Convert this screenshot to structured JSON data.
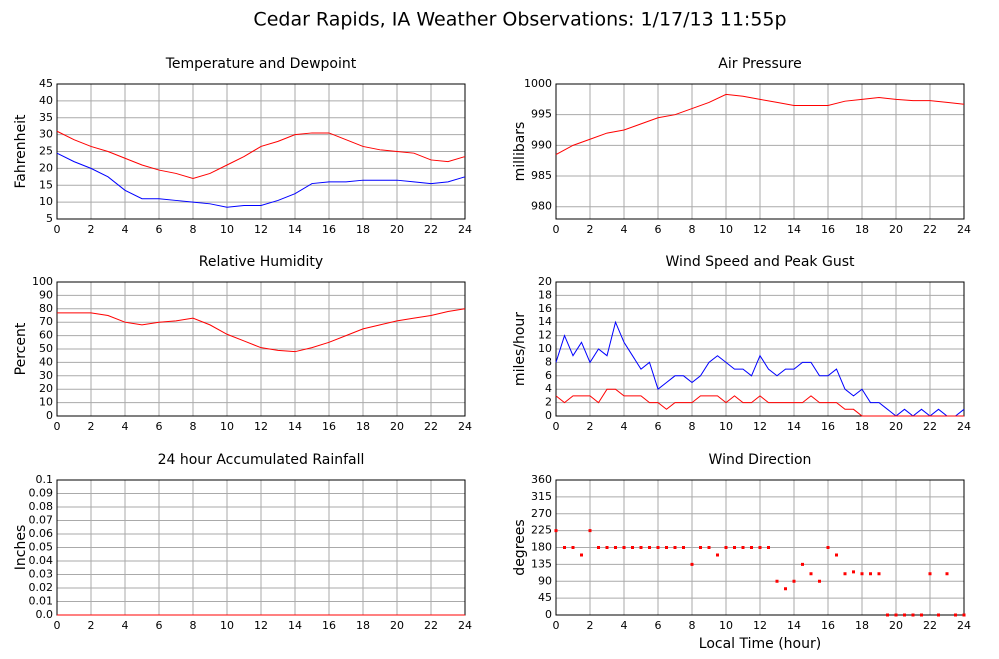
{
  "title": "Cedar Rapids, IA Weather Observations: 1/17/13 11:55p",
  "chart_data": [
    {
      "type": "line",
      "title": "Temperature and Dewpoint",
      "y_label": "Fahrenheit",
      "x": [
        0,
        1,
        2,
        3,
        4,
        5,
        6,
        7,
        8,
        9,
        10,
        11,
        12,
        13,
        14,
        15,
        16,
        17,
        18,
        19,
        20,
        21,
        22,
        23,
        24
      ],
      "series": [
        {
          "color": "#ff0000",
          "values": [
            31,
            28.5,
            26.5,
            25,
            23,
            21,
            19.5,
            18.5,
            17,
            18.5,
            21,
            23.5,
            26.5,
            28,
            30,
            30.5,
            30.5,
            28.5,
            26.5,
            25.5,
            25,
            24.5,
            22.5,
            22,
            23.5
          ]
        },
        {
          "color": "#0000ff",
          "values": [
            24.5,
            22,
            20,
            17.5,
            13.5,
            11,
            11,
            10.5,
            10,
            9.5,
            8.5,
            9,
            9,
            10.5,
            12.5,
            15.5,
            16,
            16,
            16.5,
            16.5,
            16.5,
            16,
            15.5,
            16,
            17.5
          ]
        }
      ],
      "xlim": [
        0,
        24
      ],
      "xticks": [
        0,
        2,
        4,
        6,
        8,
        10,
        12,
        14,
        16,
        18,
        20,
        22,
        24
      ],
      "ylim": [
        5,
        45
      ],
      "yticks": [
        5,
        10,
        15,
        20,
        25,
        30,
        35,
        40,
        45
      ],
      "grid": true
    },
    {
      "type": "line",
      "title": "Air Pressure",
      "y_label": "millibars",
      "x": [
        0,
        1,
        2,
        3,
        4,
        5,
        6,
        7,
        8,
        9,
        10,
        11,
        12,
        13,
        14,
        15,
        16,
        17,
        18,
        19,
        20,
        21,
        22,
        23,
        24
      ],
      "series": [
        {
          "color": "#ff0000",
          "values": [
            988.5,
            990,
            991,
            992,
            992.5,
            993.5,
            994.5,
            995,
            996,
            997,
            998.3,
            998,
            997.5,
            997,
            996.5,
            996.5,
            996.5,
            997.2,
            997.5,
            997.8,
            997.5,
            997.3,
            997.3,
            997,
            996.7
          ]
        }
      ],
      "xlim": [
        0,
        24
      ],
      "xticks": [
        0,
        2,
        4,
        6,
        8,
        10,
        12,
        14,
        16,
        18,
        20,
        22,
        24
      ],
      "ylim": [
        978,
        1000
      ],
      "yticks": [
        980,
        985,
        990,
        995,
        1000
      ],
      "grid": true
    },
    {
      "type": "line",
      "title": "Relative Humidity",
      "y_label": "Percent",
      "x": [
        0,
        1,
        2,
        3,
        4,
        5,
        6,
        7,
        8,
        9,
        10,
        11,
        12,
        13,
        14,
        15,
        16,
        17,
        18,
        19,
        20,
        21,
        22,
        23,
        24
      ],
      "series": [
        {
          "color": "#ff0000",
          "values": [
            77,
            77,
            77,
            75,
            70,
            68,
            70,
            71,
            73,
            68,
            61,
            56,
            51,
            49,
            48,
            51,
            55,
            60,
            65,
            68,
            71,
            73,
            75,
            78,
            80
          ]
        }
      ],
      "xlim": [
        0,
        24
      ],
      "xticks": [
        0,
        2,
        4,
        6,
        8,
        10,
        12,
        14,
        16,
        18,
        20,
        22,
        24
      ],
      "ylim": [
        0,
        100
      ],
      "yticks": [
        0,
        10,
        20,
        30,
        40,
        50,
        60,
        70,
        80,
        90,
        100
      ],
      "grid": true
    },
    {
      "type": "line",
      "title": "Wind Speed and Peak Gust",
      "y_label": "miles/hour",
      "x": [
        0,
        0.5,
        1,
        1.5,
        2,
        2.5,
        3,
        3.5,
        4,
        4.5,
        5,
        5.5,
        6,
        6.5,
        7,
        7.5,
        8,
        8.5,
        9,
        9.5,
        10,
        10.5,
        11,
        11.5,
        12,
        12.5,
        13,
        13.5,
        14,
        14.5,
        15,
        15.5,
        16,
        16.5,
        17,
        17.5,
        18,
        18.5,
        19,
        19.5,
        20,
        20.5,
        21,
        21.5,
        22,
        22.5,
        23,
        23.5,
        24
      ],
      "series": [
        {
          "color": "#0000ff",
          "values": [
            8,
            12,
            9,
            11,
            8,
            10,
            9,
            14,
            11,
            9,
            7,
            8,
            4,
            5,
            6,
            6,
            5,
            6,
            8,
            9,
            8,
            7,
            7,
            6,
            9,
            7,
            6,
            7,
            7,
            8,
            8,
            6,
            6,
            7,
            4,
            3,
            4,
            2,
            2,
            1,
            0,
            1,
            0,
            1,
            0,
            1,
            0,
            0,
            1
          ]
        },
        {
          "color": "#ff0000",
          "values": [
            3,
            2,
            3,
            3,
            3,
            2,
            4,
            4,
            3,
            3,
            3,
            2,
            2,
            1,
            2,
            2,
            2,
            3,
            3,
            3,
            2,
            3,
            2,
            2,
            3,
            2,
            2,
            2,
            2,
            2,
            3,
            2,
            2,
            2,
            1,
            1,
            0,
            0,
            0,
            0,
            0,
            0,
            0,
            0,
            0,
            0,
            0,
            0,
            0
          ]
        }
      ],
      "xlim": [
        0,
        24
      ],
      "xticks": [
        0,
        2,
        4,
        6,
        8,
        10,
        12,
        14,
        16,
        18,
        20,
        22,
        24
      ],
      "ylim": [
        0,
        20
      ],
      "yticks": [
        0,
        2,
        4,
        6,
        8,
        10,
        12,
        14,
        16,
        18,
        20
      ],
      "grid": true
    },
    {
      "type": "line",
      "title": "24 hour Accumulated Rainfall",
      "y_label": "Inches",
      "x": [
        0,
        24
      ],
      "series": [
        {
          "color": "#ff0000",
          "values": [
            0,
            0
          ]
        }
      ],
      "xlim": [
        0,
        24
      ],
      "xticks": [
        0,
        2,
        4,
        6,
        8,
        10,
        12,
        14,
        16,
        18,
        20,
        22,
        24
      ],
      "ylim": [
        0,
        0.1
      ],
      "yticks": [
        {
          "value": 0,
          "label": "0.0"
        },
        0.01,
        0.02,
        0.03,
        0.04,
        0.05,
        0.06,
        0.07,
        0.08,
        0.09,
        0.1
      ],
      "grid": true
    },
    {
      "type": "scatter",
      "title": "Wind Direction",
      "y_label": "degrees",
      "x_label": "Local Time (hour)",
      "x": [
        0,
        0.5,
        1,
        1.5,
        2,
        2.5,
        3,
        3.5,
        4,
        4.5,
        5,
        5.5,
        6,
        6.5,
        7,
        7.5,
        8,
        8.5,
        9,
        9.5,
        10,
        10.5,
        11,
        11.5,
        12,
        12.5,
        13,
        13.5,
        14,
        14.5,
        15,
        15.5,
        16,
        16.5,
        17,
        17.5,
        18,
        18.5,
        19,
        19.5,
        20,
        20.5,
        21,
        21.5,
        22,
        22.5,
        23,
        23.5,
        24
      ],
      "series": [
        {
          "color": "#ff0000",
          "values": [
            225,
            180,
            180,
            160,
            225,
            180,
            180,
            180,
            180,
            180,
            180,
            180,
            180,
            180,
            180,
            180,
            135,
            180,
            180,
            160,
            180,
            180,
            180,
            180,
            180,
            180,
            90,
            70,
            90,
            135,
            110,
            90,
            180,
            160,
            110,
            115,
            110,
            110,
            110,
            0,
            0,
            0,
            0,
            0,
            110,
            0,
            110,
            0,
            0
          ]
        }
      ],
      "xlim": [
        0,
        24
      ],
      "xticks": [
        0,
        2,
        4,
        6,
        8,
        10,
        12,
        14,
        16,
        18,
        20,
        22,
        24
      ],
      "ylim": [
        0,
        360
      ],
      "yticks": [
        0,
        45,
        90,
        135,
        180,
        225,
        270,
        315,
        360
      ],
      "grid": true
    }
  ]
}
